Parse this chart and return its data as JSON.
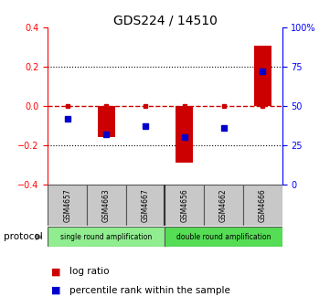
{
  "title": "GDS224 / 14510",
  "samples": [
    "GSM4657",
    "GSM4663",
    "GSM4667",
    "GSM4656",
    "GSM4662",
    "GSM4666"
  ],
  "log_ratios": [
    0.0,
    -0.16,
    0.0,
    -0.29,
    0.0,
    0.31
  ],
  "percentile_ranks": [
    42,
    32,
    37,
    30,
    36,
    72
  ],
  "bar_color": "#CC0000",
  "dot_color": "#0000CC",
  "ylim_left": [
    -0.4,
    0.4
  ],
  "ylim_right": [
    0,
    100
  ],
  "yticks_left": [
    -0.4,
    -0.2,
    0.0,
    0.2,
    0.4
  ],
  "yticks_right": [
    0,
    25,
    50,
    75,
    100
  ],
  "single_color": "#90EE90",
  "double_color": "#55DD55",
  "sample_box_color": "#C8C8C8",
  "bg_color": "#FFFFFF",
  "single_samples": [
    0,
    1,
    2
  ],
  "double_samples": [
    3,
    4,
    5
  ]
}
